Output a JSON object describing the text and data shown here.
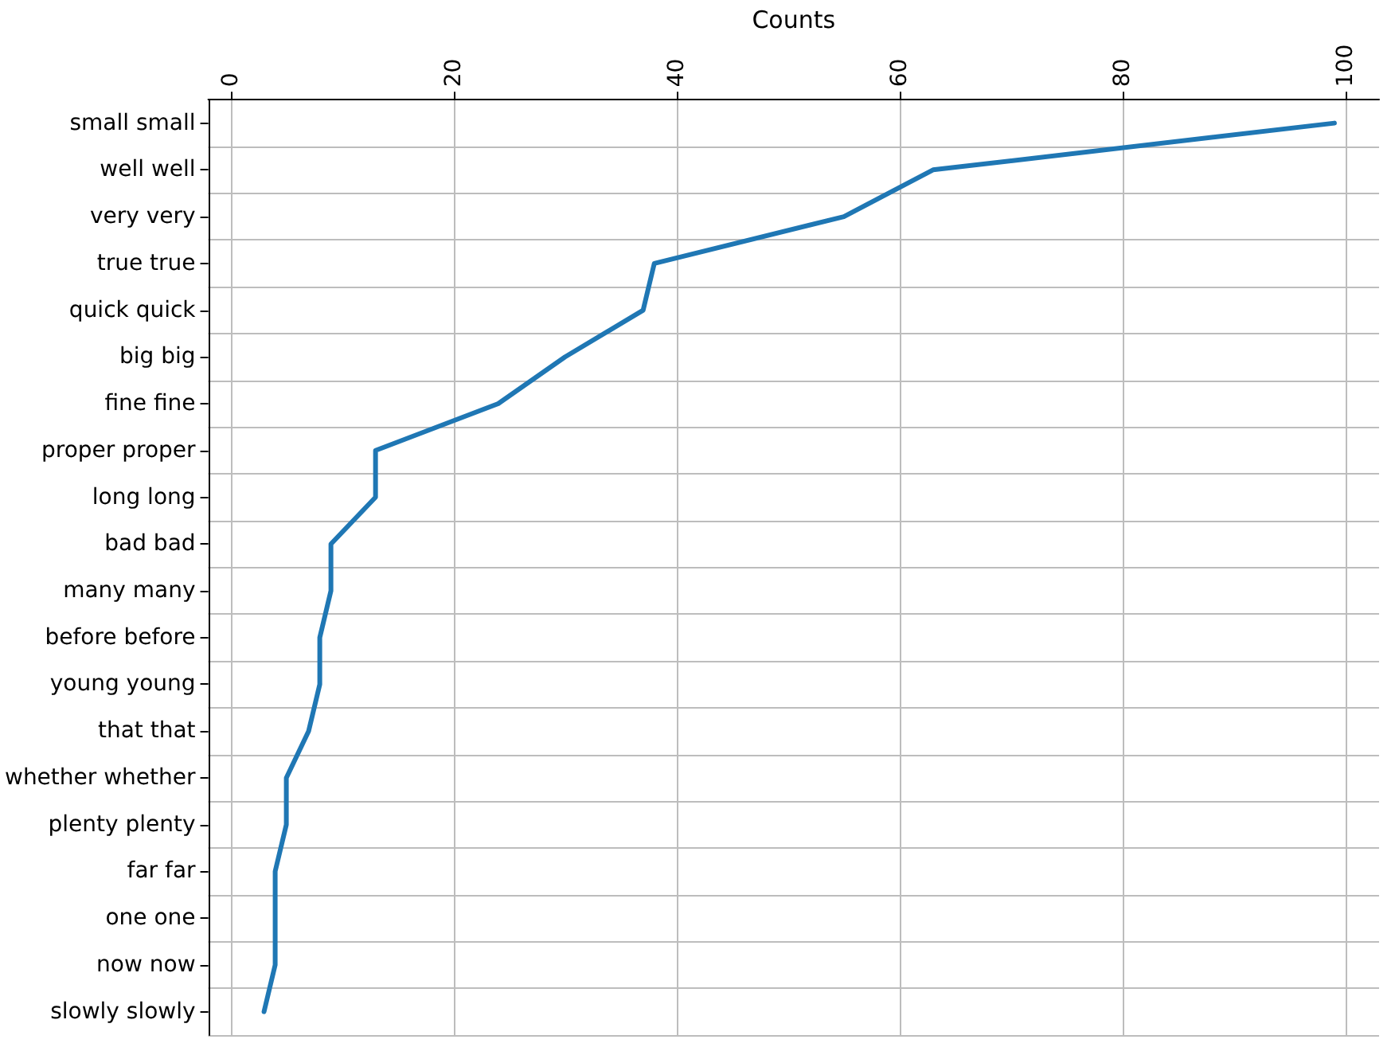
{
  "chart_data": {
    "type": "line",
    "orientation": "horizontal",
    "xlabel": "Counts",
    "categories": [
      "small small",
      "well well",
      "very very",
      "true true",
      "quick quick",
      "big big",
      "fine fine",
      "proper proper",
      "long long",
      "bad bad",
      "many many",
      "before before",
      "young young",
      "that that",
      "whether whether",
      "plenty plenty",
      "far far",
      "one one",
      "now now",
      "slowly slowly"
    ],
    "series": [
      {
        "color": "#1f77b4",
        "values": [
          99,
          63,
          55,
          38,
          37,
          30,
          24,
          13,
          13,
          9,
          9,
          8,
          8,
          7,
          5,
          5,
          4,
          4,
          4,
          3
        ]
      }
    ],
    "xlim": [
      -2,
      103
    ],
    "xticks": [
      0,
      20,
      40,
      60,
      80,
      100
    ],
    "grid": true,
    "marker": "none",
    "line_style": "solid"
  }
}
